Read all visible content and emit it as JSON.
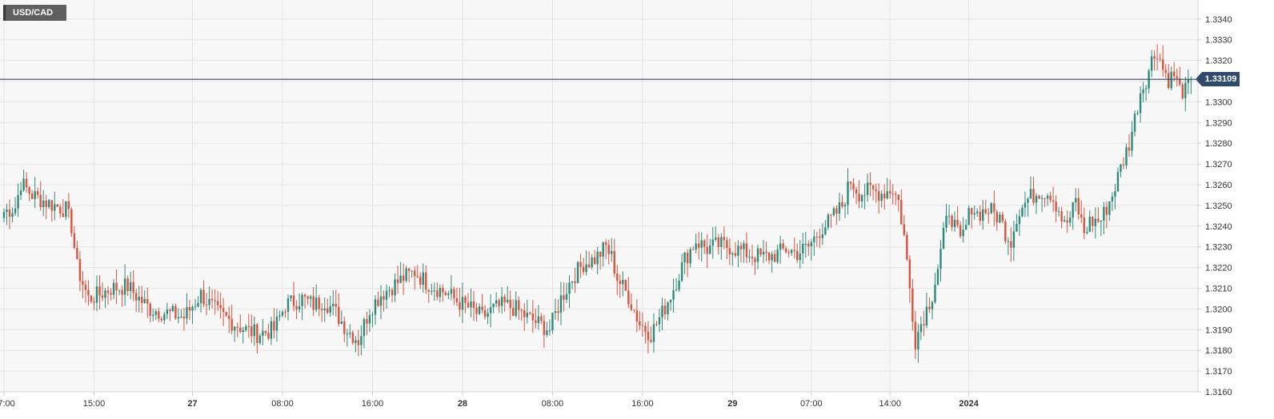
{
  "chart_data": {
    "type": "candlestick",
    "symbol": "USD/CAD",
    "last_price_label": "1.33109",
    "last_price": 1.33109,
    "ylim": [
      1.316,
      1.3345
    ],
    "y_ticks": [
      "1.3340",
      "1.3330",
      "1.3320",
      "1.3310",
      "1.3300",
      "1.3290",
      "1.3280",
      "1.3270",
      "1.3260",
      "1.3250",
      "1.3240",
      "1.3230",
      "1.3220",
      "1.3210",
      "1.3200",
      "1.3190",
      "1.3180",
      "1.3170",
      "1.3160"
    ],
    "x_labels": [
      {
        "label": "07:00",
        "bold": false,
        "i": 0
      },
      {
        "label": "15:00",
        "bold": false,
        "i": 32
      },
      {
        "label": "27",
        "bold": true,
        "i": 67
      },
      {
        "label": "08:00",
        "bold": false,
        "i": 99
      },
      {
        "label": "16:00",
        "bold": false,
        "i": 131
      },
      {
        "label": "28",
        "bold": true,
        "i": 163
      },
      {
        "label": "08:00",
        "bold": false,
        "i": 195
      },
      {
        "label": "16:00",
        "bold": false,
        "i": 227
      },
      {
        "label": "29",
        "bold": true,
        "i": 259
      },
      {
        "label": "07:00",
        "bold": false,
        "i": 287
      },
      {
        "label": "14:00",
        "bold": false,
        "i": 315
      },
      {
        "label": "2024",
        "bold": true,
        "i": 343
      }
    ],
    "keypoints": [
      [
        0,
        1.3247
      ],
      [
        4,
        1.3249
      ],
      [
        6,
        1.3261
      ],
      [
        10,
        1.3255
      ],
      [
        16,
        1.3251
      ],
      [
        22,
        1.3248
      ],
      [
        24,
        1.324
      ],
      [
        26,
        1.322
      ],
      [
        30,
        1.3205
      ],
      [
        34,
        1.3207
      ],
      [
        38,
        1.321
      ],
      [
        44,
        1.3211
      ],
      [
        48,
        1.3205
      ],
      [
        52,
        1.32
      ],
      [
        58,
        1.3198
      ],
      [
        64,
        1.3196
      ],
      [
        70,
        1.3207
      ],
      [
        76,
        1.3198
      ],
      [
        82,
        1.3193
      ],
      [
        86,
        1.319
      ],
      [
        90,
        1.3188
      ],
      [
        96,
        1.319
      ],
      [
        100,
        1.3202
      ],
      [
        106,
        1.3205
      ],
      [
        110,
        1.3202
      ],
      [
        114,
        1.3204
      ],
      [
        118,
        1.3198
      ],
      [
        122,
        1.319
      ],
      [
        126,
        1.3185
      ],
      [
        130,
        1.32
      ],
      [
        134,
        1.3207
      ],
      [
        138,
        1.3211
      ],
      [
        142,
        1.3215
      ],
      [
        146,
        1.3218
      ],
      [
        150,
        1.3213
      ],
      [
        154,
        1.321
      ],
      [
        158,
        1.3207
      ],
      [
        162,
        1.3203
      ],
      [
        166,
        1.32
      ],
      [
        170,
        1.3196
      ],
      [
        174,
        1.32
      ],
      [
        178,
        1.3202
      ],
      [
        182,
        1.32
      ],
      [
        186,
        1.3196
      ],
      [
        190,
        1.3193
      ],
      [
        194,
        1.319
      ],
      [
        198,
        1.3205
      ],
      [
        202,
        1.3215
      ],
      [
        206,
        1.3222
      ],
      [
        210,
        1.3224
      ],
      [
        214,
        1.323
      ],
      [
        216,
        1.3225
      ],
      [
        218,
        1.3215
      ],
      [
        222,
        1.3206
      ],
      [
        226,
        1.3193
      ],
      [
        230,
        1.3188
      ],
      [
        234,
        1.3198
      ],
      [
        238,
        1.321
      ],
      [
        242,
        1.3224
      ],
      [
        246,
        1.3233
      ],
      [
        250,
        1.3229
      ],
      [
        254,
        1.3231
      ],
      [
        258,
        1.323
      ],
      [
        262,
        1.3228
      ],
      [
        266,
        1.3226
      ],
      [
        270,
        1.3225
      ],
      [
        274,
        1.3226
      ],
      [
        278,
        1.3229
      ],
      [
        282,
        1.3227
      ],
      [
        286,
        1.323
      ],
      [
        290,
        1.3238
      ],
      [
        294,
        1.3243
      ],
      [
        298,
        1.325
      ],
      [
        301,
        1.3262
      ],
      [
        304,
        1.3256
      ],
      [
        308,
        1.3257
      ],
      [
        312,
        1.3256
      ],
      [
        316,
        1.3258
      ],
      [
        318,
        1.3252
      ],
      [
        320,
        1.3235
      ],
      [
        322,
        1.321
      ],
      [
        324,
        1.3185
      ],
      [
        326,
        1.3193
      ],
      [
        328,
        1.32
      ],
      [
        330,
        1.3207
      ],
      [
        332,
        1.322
      ],
      [
        334,
        1.3235
      ],
      [
        336,
        1.3248
      ],
      [
        338,
        1.324
      ],
      [
        340,
        1.3232
      ],
      [
        342,
        1.324
      ],
      [
        344,
        1.325
      ],
      [
        346,
        1.3246
      ],
      [
        350,
        1.3248
      ],
      [
        354,
        1.3244
      ],
      [
        356,
        1.3237
      ],
      [
        358,
        1.3233
      ],
      [
        360,
        1.3245
      ],
      [
        364,
        1.3253
      ],
      [
        368,
        1.3257
      ],
      [
        372,
        1.3256
      ],
      [
        375,
        1.3248
      ],
      [
        377,
        1.324
      ],
      [
        379,
        1.3244
      ],
      [
        381,
        1.3252
      ],
      [
        384,
        1.3237
      ],
      [
        386,
        1.3242
      ],
      [
        390,
        1.3243
      ],
      [
        394,
        1.3255
      ],
      [
        397,
        1.3268
      ],
      [
        400,
        1.328
      ],
      [
        402,
        1.3292
      ],
      [
        404,
        1.3305
      ],
      [
        406,
        1.3311
      ],
      [
        408,
        1.332
      ],
      [
        410,
        1.3325
      ],
      [
        412,
        1.3316
      ],
      [
        414,
        1.3311
      ],
      [
        416,
        1.3313
      ],
      [
        418,
        1.3306
      ],
      [
        420,
        1.3305
      ],
      [
        422,
        1.3311
      ]
    ]
  }
}
